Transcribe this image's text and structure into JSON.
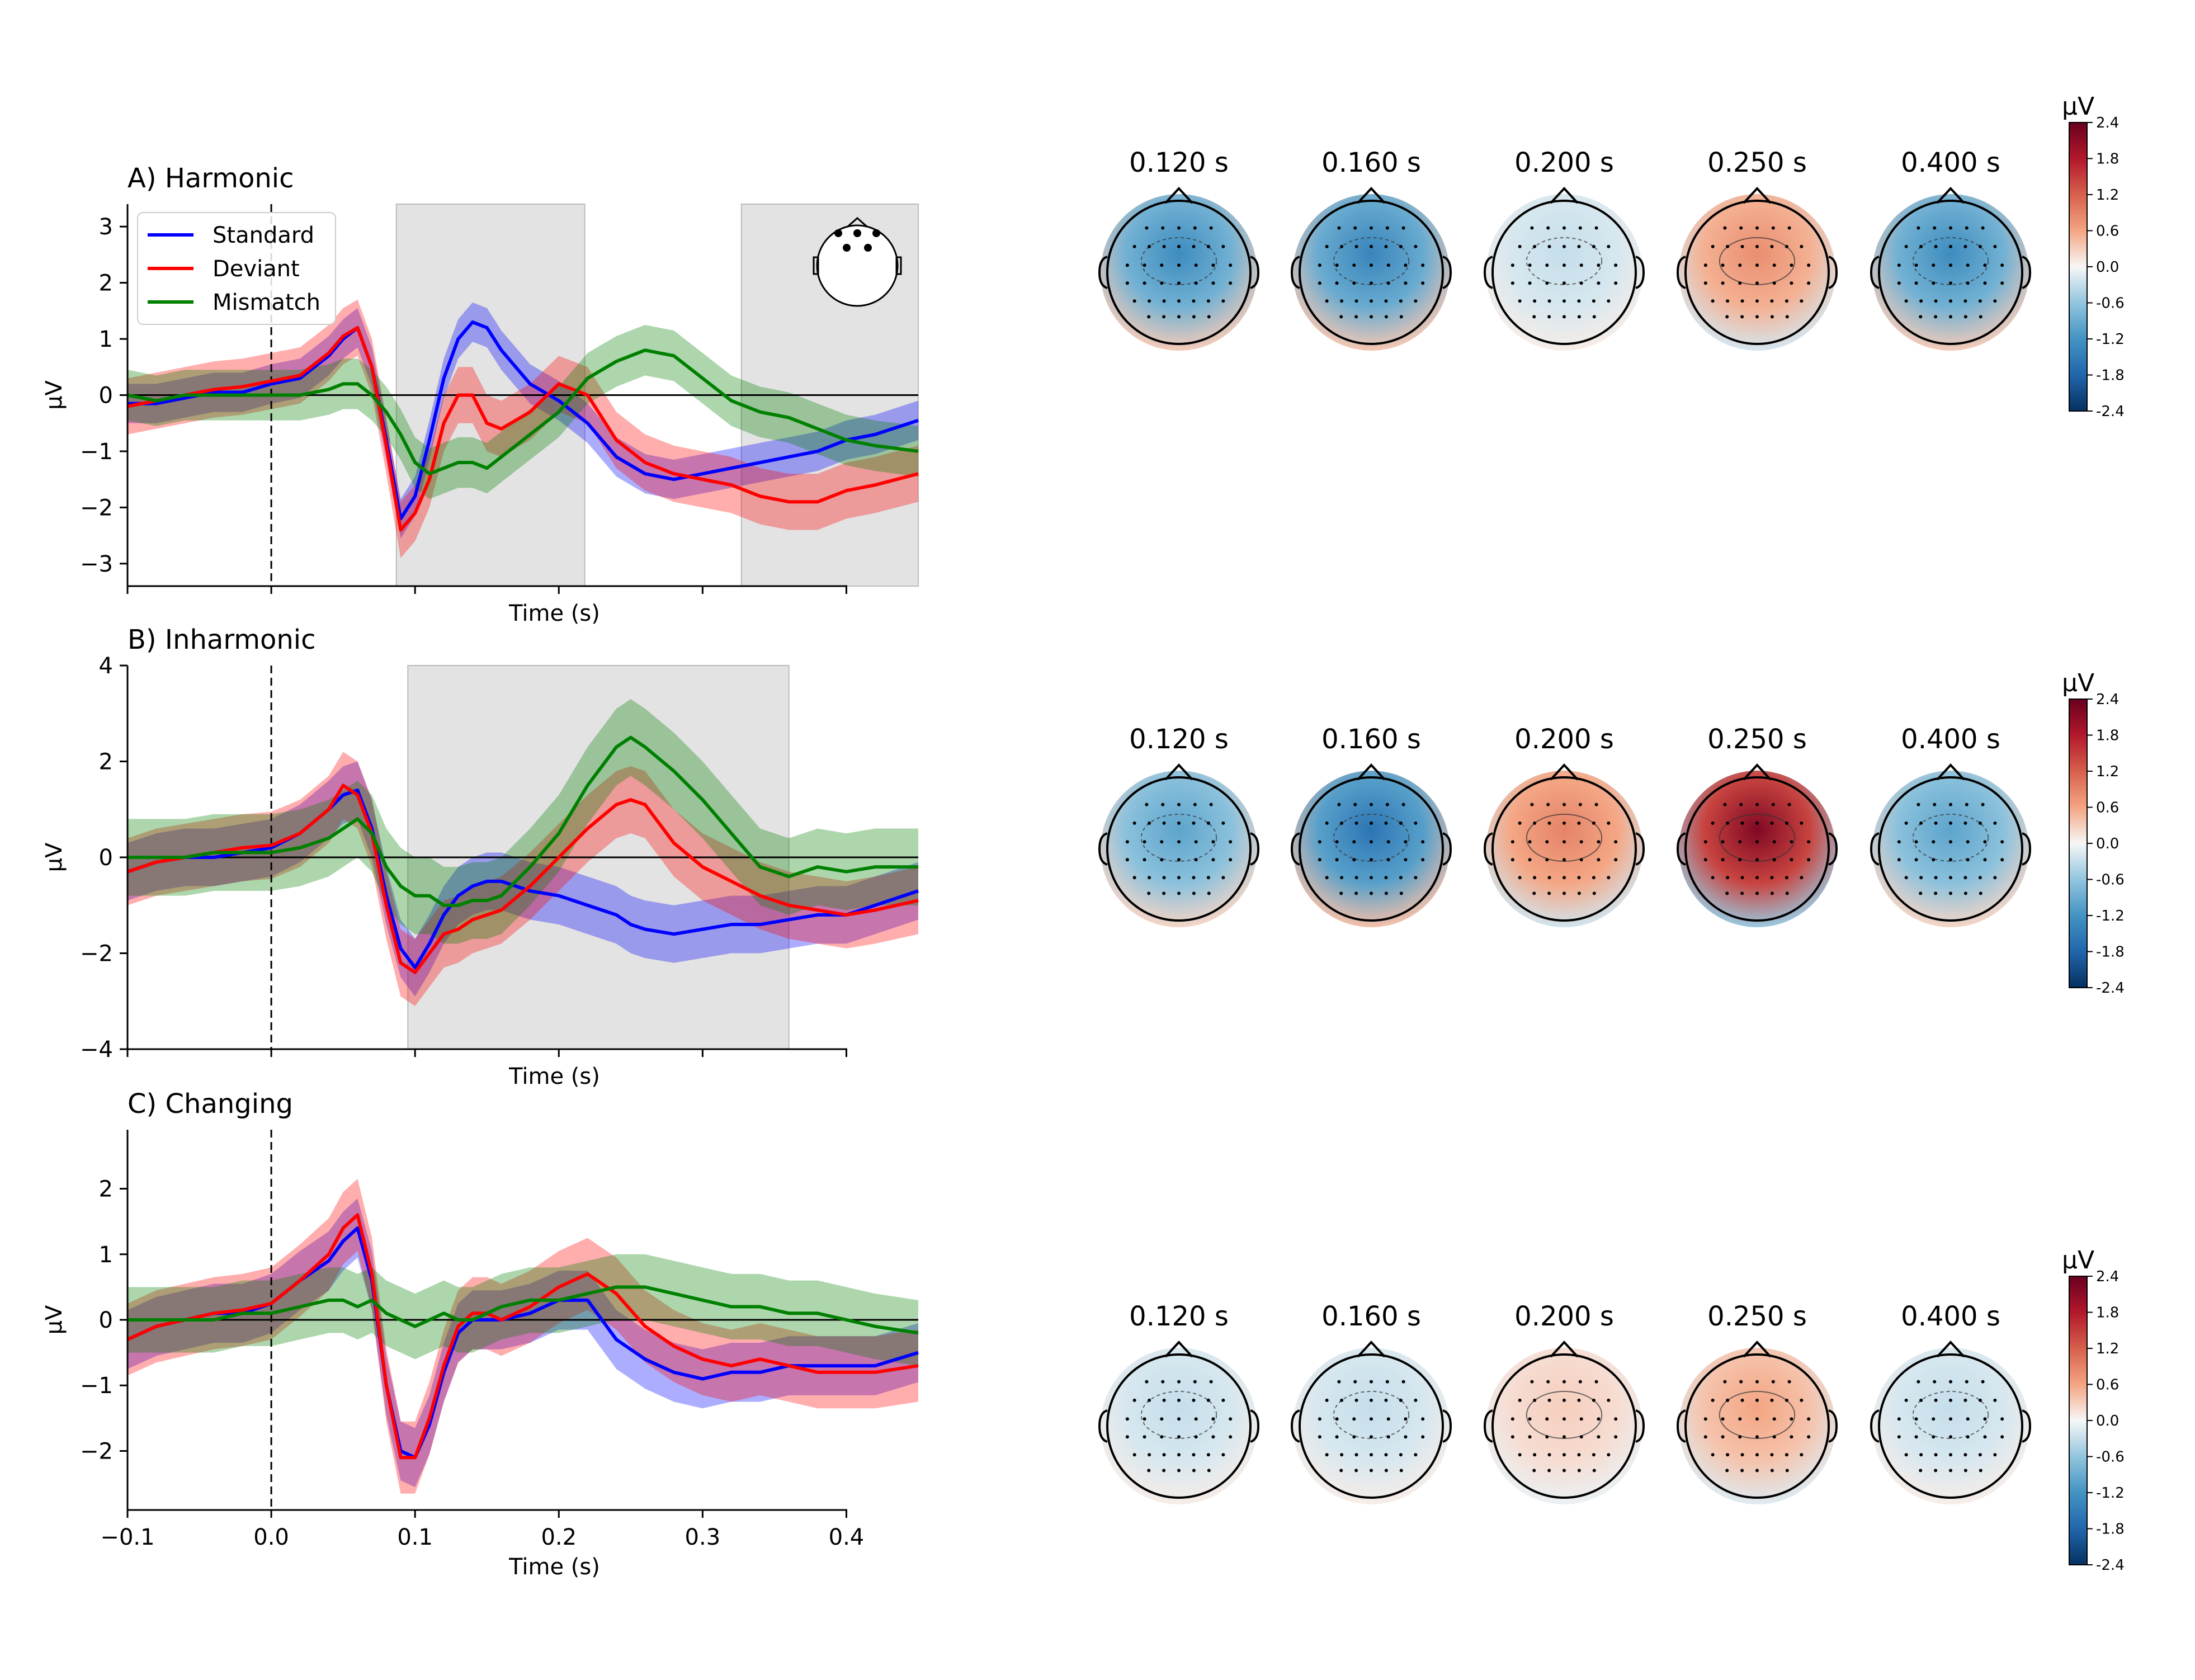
{
  "colors": {
    "standard": "#0000ff",
    "deviant": "#ff0000",
    "mismatch": "#008000",
    "shade": "#d9d9d9",
    "cmap_neg": "#2166ac",
    "cmap_pos": "#b2182b"
  },
  "legend": {
    "entries": [
      "Standard",
      "Deviant",
      "Mismatch"
    ],
    "placement": "upper-left of panel A"
  },
  "chart_data": [
    {
      "type": "line",
      "title": "A) Harmonic",
      "xlabel": "Time (s)",
      "ylabel": "µV",
      "xlim": [
        -0.1,
        0.45
      ],
      "ylim": [
        -3.4,
        3.4
      ],
      "yticks": [
        "−3",
        "−2",
        "−1",
        "0",
        "1",
        "2",
        "3"
      ],
      "ytick_values": [
        -3,
        -2,
        -1,
        0,
        1,
        2,
        3
      ],
      "xtick_values": [
        -0.1,
        0.0,
        0.1,
        0.2,
        0.3,
        0.4
      ],
      "xticks_labeled": false,
      "shaded_regions": [
        [
          0.087,
          0.218
        ],
        [
          0.327,
          0.45
        ]
      ],
      "sensor_inset": true,
      "x": [
        -0.1,
        -0.08,
        -0.06,
        -0.04,
        -0.02,
        0.0,
        0.02,
        0.04,
        0.05,
        0.06,
        0.07,
        0.08,
        0.09,
        0.1,
        0.11,
        0.12,
        0.13,
        0.14,
        0.15,
        0.16,
        0.18,
        0.2,
        0.22,
        0.24,
        0.26,
        0.28,
        0.3,
        0.32,
        0.34,
        0.36,
        0.38,
        0.4,
        0.42,
        0.45
      ],
      "series": [
        {
          "name": "Standard",
          "values": [
            -0.15,
            -0.15,
            -0.05,
            0.05,
            0.05,
            0.2,
            0.3,
            0.7,
            1.0,
            1.2,
            0.5,
            -0.8,
            -2.2,
            -1.8,
            -0.8,
            0.3,
            1.0,
            1.3,
            1.2,
            0.8,
            0.2,
            -0.1,
            -0.5,
            -1.1,
            -1.4,
            -1.5,
            -1.4,
            -1.3,
            -1.2,
            -1.1,
            -1.0,
            -0.8,
            -0.7,
            -0.45
          ],
          "band": 0.35
        },
        {
          "name": "Deviant",
          "values": [
            -0.2,
            -0.1,
            0.0,
            0.1,
            0.15,
            0.25,
            0.35,
            0.75,
            1.05,
            1.2,
            0.5,
            -0.9,
            -2.4,
            -2.1,
            -1.5,
            -0.5,
            0.0,
            0.0,
            -0.5,
            -0.6,
            -0.3,
            0.2,
            0.0,
            -0.8,
            -1.2,
            -1.4,
            -1.5,
            -1.6,
            -1.8,
            -1.9,
            -1.9,
            -1.7,
            -1.6,
            -1.4
          ],
          "band": 0.5
        },
        {
          "name": "Mismatch",
          "values": [
            0.0,
            -0.1,
            0.0,
            0.0,
            0.0,
            0.0,
            0.0,
            0.1,
            0.2,
            0.2,
            0.0,
            -0.3,
            -0.7,
            -1.2,
            -1.4,
            -1.3,
            -1.2,
            -1.2,
            -1.3,
            -1.1,
            -0.7,
            -0.3,
            0.3,
            0.6,
            0.8,
            0.7,
            0.3,
            -0.1,
            -0.3,
            -0.4,
            -0.6,
            -0.8,
            -0.9,
            -1.0
          ],
          "band": 0.45
        }
      ]
    },
    {
      "type": "line",
      "title": "B) Inharmonic",
      "xlabel": "Time (s)",
      "ylabel": "µV",
      "xlim": [
        -0.1,
        0.45
      ],
      "ylim": [
        -4.0,
        4.0
      ],
      "yticks": [
        "−4",
        "−2",
        "0",
        "2",
        "4"
      ],
      "ytick_values": [
        -4,
        -2,
        0,
        2,
        4
      ],
      "xtick_values": [
        -0.1,
        0.0,
        0.1,
        0.2,
        0.3,
        0.4
      ],
      "xticks_labeled": false,
      "shaded_regions": [
        [
          0.095,
          0.36
        ]
      ],
      "x": [
        -0.1,
        -0.08,
        -0.06,
        -0.04,
        -0.02,
        0.0,
        0.02,
        0.04,
        0.05,
        0.06,
        0.07,
        0.08,
        0.09,
        0.1,
        0.11,
        0.12,
        0.13,
        0.14,
        0.15,
        0.16,
        0.18,
        0.2,
        0.22,
        0.24,
        0.25,
        0.26,
        0.28,
        0.3,
        0.32,
        0.34,
        0.36,
        0.38,
        0.4,
        0.42,
        0.45
      ],
      "series": [
        {
          "name": "Standard",
          "values": [
            -0.3,
            -0.1,
            0.0,
            0.0,
            0.1,
            0.2,
            0.5,
            1.0,
            1.3,
            1.4,
            0.6,
            -0.8,
            -1.9,
            -2.3,
            -1.8,
            -1.2,
            -0.8,
            -0.6,
            -0.5,
            -0.5,
            -0.7,
            -0.8,
            -1.0,
            -1.2,
            -1.4,
            -1.5,
            -1.6,
            -1.5,
            -1.4,
            -1.4,
            -1.3,
            -1.2,
            -1.2,
            -1.0,
            -0.7
          ],
          "band": 0.6
        },
        {
          "name": "Deviant",
          "values": [
            -0.3,
            -0.1,
            0.0,
            0.1,
            0.2,
            0.25,
            0.5,
            1.0,
            1.5,
            1.3,
            0.5,
            -1.0,
            -2.2,
            -2.4,
            -2.0,
            -1.6,
            -1.5,
            -1.3,
            -1.2,
            -1.1,
            -0.6,
            0.0,
            0.6,
            1.1,
            1.2,
            1.1,
            0.3,
            -0.2,
            -0.5,
            -0.8,
            -1.0,
            -1.1,
            -1.2,
            -1.1,
            -0.9
          ],
          "band": 0.7
        },
        {
          "name": "Mismatch",
          "values": [
            0.0,
            0.0,
            0.0,
            0.1,
            0.1,
            0.1,
            0.2,
            0.4,
            0.6,
            0.8,
            0.5,
            -0.2,
            -0.6,
            -0.8,
            -0.8,
            -1.0,
            -1.0,
            -0.9,
            -0.9,
            -0.8,
            -0.2,
            0.5,
            1.5,
            2.3,
            2.5,
            2.3,
            1.8,
            1.2,
            0.5,
            -0.2,
            -0.4,
            -0.2,
            -0.3,
            -0.2,
            -0.2
          ],
          "band": 0.8
        }
      ]
    },
    {
      "type": "line",
      "title": "C) Changing",
      "xlabel": "Time (s)",
      "ylabel": "µV",
      "xlim": [
        -0.1,
        0.45
      ],
      "ylim": [
        -2.9,
        2.9
      ],
      "yticks": [
        "−2",
        "−1",
        "0",
        "1",
        "2"
      ],
      "ytick_values": [
        -2,
        -1,
        0,
        1,
        2
      ],
      "xtick_values": [
        -0.1,
        0.0,
        0.1,
        0.2,
        0.3,
        0.4
      ],
      "xtick_labels": [
        "−0.1",
        "0.0",
        "0.1",
        "0.2",
        "0.3",
        "0.4"
      ],
      "xticks_labeled": true,
      "shaded_regions": [],
      "x": [
        -0.1,
        -0.08,
        -0.06,
        -0.04,
        -0.02,
        0.0,
        0.02,
        0.04,
        0.05,
        0.06,
        0.07,
        0.08,
        0.09,
        0.1,
        0.11,
        0.12,
        0.13,
        0.14,
        0.15,
        0.16,
        0.18,
        0.2,
        0.22,
        0.24,
        0.26,
        0.28,
        0.3,
        0.32,
        0.34,
        0.36,
        0.38,
        0.4,
        0.42,
        0.45
      ],
      "series": [
        {
          "name": "Standard",
          "values": [
            -0.3,
            -0.1,
            0.0,
            0.1,
            0.1,
            0.25,
            0.6,
            0.9,
            1.2,
            1.4,
            0.6,
            -1.0,
            -2.0,
            -2.1,
            -1.6,
            -0.8,
            -0.2,
            0.0,
            0.0,
            0.0,
            0.1,
            0.3,
            0.3,
            -0.3,
            -0.6,
            -0.8,
            -0.9,
            -0.8,
            -0.8,
            -0.7,
            -0.7,
            -0.7,
            -0.7,
            -0.5
          ],
          "band": 0.45
        },
        {
          "name": "Deviant",
          "values": [
            -0.3,
            -0.1,
            0.0,
            0.1,
            0.15,
            0.25,
            0.6,
            1.0,
            1.4,
            1.6,
            0.7,
            -1.0,
            -2.1,
            -2.1,
            -1.5,
            -0.7,
            -0.1,
            0.1,
            0.1,
            0.0,
            0.2,
            0.5,
            0.7,
            0.4,
            -0.1,
            -0.4,
            -0.6,
            -0.7,
            -0.6,
            -0.7,
            -0.8,
            -0.8,
            -0.8,
            -0.7
          ],
          "band": 0.55
        },
        {
          "name": "Mismatch",
          "values": [
            0.0,
            0.0,
            0.0,
            0.0,
            0.1,
            0.1,
            0.2,
            0.3,
            0.3,
            0.2,
            0.3,
            0.1,
            0.0,
            -0.1,
            0.0,
            0.1,
            0.0,
            0.0,
            0.1,
            0.2,
            0.3,
            0.3,
            0.4,
            0.5,
            0.5,
            0.4,
            0.3,
            0.2,
            0.2,
            0.1,
            0.1,
            0.0,
            -0.1,
            -0.2
          ],
          "band": 0.5
        }
      ]
    },
    {
      "type": "heatmap",
      "subtype": "topomap-row",
      "condition": "A) Harmonic",
      "times": [
        "0.120 s",
        "0.160 s",
        "0.200 s",
        "0.250 s",
        "0.400 s"
      ],
      "peak_values_uV": [
        -1.3,
        -1.4,
        -0.3,
        0.8,
        -1.3
      ],
      "colorbar": {
        "label": "µV",
        "ticks": [
          "2.4",
          "1.8",
          "1.2",
          "0.6",
          "0.0",
          "-0.6",
          "-1.2",
          "-1.8",
          "-2.4"
        ],
        "range": [
          -2.4,
          2.4
        ],
        "cmap": "RdBu_r"
      }
    },
    {
      "type": "heatmap",
      "subtype": "topomap-row",
      "condition": "B) Inharmonic",
      "times": [
        "0.120 s",
        "0.160 s",
        "0.200 s",
        "0.250 s",
        "0.400 s"
      ],
      "peak_values_uV": [
        -1.0,
        -1.6,
        0.9,
        2.2,
        -1.0
      ],
      "colorbar": {
        "label": "µV",
        "ticks": [
          "2.4",
          "1.8",
          "1.2",
          "0.6",
          "0.0",
          "-0.6",
          "-1.2",
          "-1.8",
          "-2.4"
        ],
        "range": [
          -2.4,
          2.4
        ],
        "cmap": "RdBu_r"
      }
    },
    {
      "type": "heatmap",
      "subtype": "topomap-row",
      "condition": "C) Changing",
      "times": [
        "0.120 s",
        "0.160 s",
        "0.200 s",
        "0.250 s",
        "0.400 s"
      ],
      "peak_values_uV": [
        -0.3,
        -0.3,
        0.3,
        0.6,
        -0.3
      ],
      "colorbar": {
        "label": "µV",
        "ticks": [
          "2.4",
          "1.8",
          "1.2",
          "0.6",
          "0.0",
          "-0.6",
          "-1.2",
          "-1.8",
          "-2.4"
        ],
        "range": [
          -2.4,
          2.4
        ],
        "cmap": "RdBu_r"
      }
    }
  ]
}
